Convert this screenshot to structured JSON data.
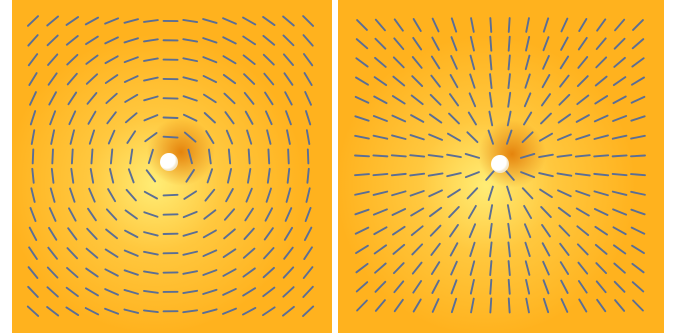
{
  "colors": {
    "background": "#ffffff",
    "field_base": "#FFB21E",
    "field_glow": "#FFF07A",
    "field_dark": "#E07500",
    "needle": "#5A6E96",
    "needle_highlight": "#B7C4DE",
    "defect_core": "#ffffff"
  },
  "panels": [
    {
      "id": "left",
      "pattern": "circular-defect",
      "topological_charge": 1,
      "phase_offset_deg": 90
    },
    {
      "id": "right",
      "pattern": "radial-defect",
      "topological_charge": 1,
      "phase_offset_deg": 0
    }
  ]
}
